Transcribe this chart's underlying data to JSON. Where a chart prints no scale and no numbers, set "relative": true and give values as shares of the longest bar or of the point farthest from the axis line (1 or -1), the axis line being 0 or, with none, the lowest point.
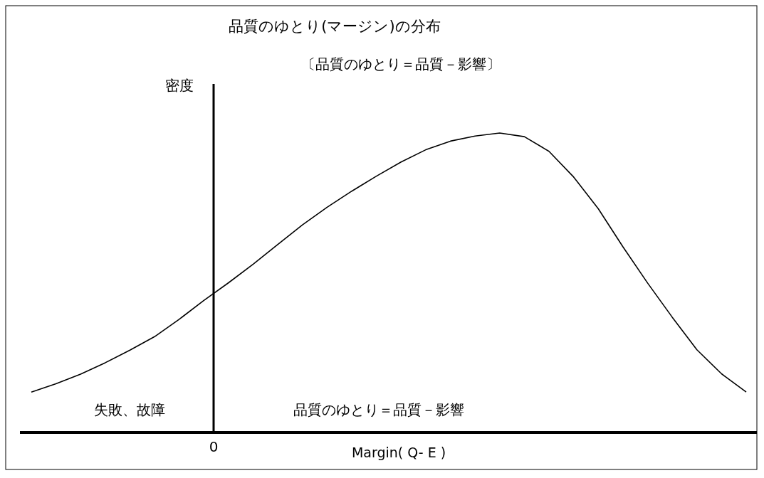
{
  "chart_data": {
    "type": "line",
    "title": "品質のゆとり(マージン)の分布",
    "subtitle": "〔品質のゆとり＝品質－影響〕",
    "xlabel": "Margin( Q- E )",
    "ylabel": "密度",
    "relative": true,
    "categories": [
      null,
      null,
      null,
      null,
      null,
      null,
      null,
      null,
      null,
      null,
      null,
      null,
      null,
      null,
      null,
      null,
      null,
      null,
      null,
      null,
      null,
      null,
      null,
      null,
      null,
      null,
      null,
      null,
      null,
      null
    ],
    "series": [
      {
        "color": "#000000",
        "values": [
          0.135,
          0.163,
          0.195,
          0.233,
          0.275,
          0.32,
          0.378,
          0.441,
          0.5,
          0.562,
          0.628,
          0.693,
          0.752,
          0.806,
          0.856,
          0.903,
          0.944,
          0.973,
          0.99,
          1,
          0.988,
          0.939,
          0.853,
          0.747,
          0.62,
          0.499,
          0.385,
          0.276,
          0.196,
          0.135
        ]
      }
    ],
    "marker": "none",
    "line_style": "solid",
    "annotations": [
      "失敗、故障",
      "品質のゆとり＝品質－影響",
      "0"
    ]
  }
}
